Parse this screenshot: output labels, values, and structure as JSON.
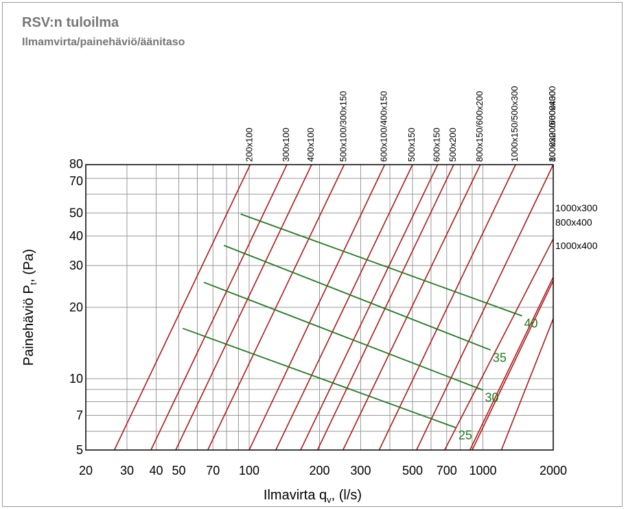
{
  "header": {
    "title": "RSV:n tuloilma",
    "subtitle": "Ilmamvirta/painehäviö/äänitaso"
  },
  "colors": {
    "grid": "#999999",
    "size_lines": "#b01818",
    "sound_lines": "#1f7a1f",
    "title_text": "#777777"
  },
  "chart_data": {
    "type": "line",
    "title": "RSV:n tuloilma",
    "subtitle": "Ilmamvirta/painehäviö/äänitaso",
    "xlabel": "Ilmavirta q",
    "xlabel_sub": "v",
    "xlabel_suffix": ", (l/s)",
    "ylabel": "Painehäviö P",
    "ylabel_sub": "t",
    "ylabel_suffix": ", (Pa)",
    "x_scale": "log",
    "y_scale": "log",
    "xlim": [
      20,
      2000
    ],
    "ylim": [
      5,
      80
    ],
    "grid": true,
    "x_ticks": [
      20,
      30,
      40,
      50,
      70,
      100,
      200,
      300,
      500,
      700,
      1000,
      2000
    ],
    "x_tick_labels": [
      "20",
      "30",
      "40",
      "50",
      "70",
      "100",
      "200",
      "300",
      "500",
      "700",
      "1000",
      "2000"
    ],
    "y_ticks": [
      5,
      7,
      10,
      20,
      30,
      40,
      50,
      70,
      80
    ],
    "y_tick_labels": [
      "5",
      "7",
      "10",
      "20",
      "30",
      "40",
      "50",
      "70",
      "80"
    ],
    "x_grid": [
      20,
      30,
      40,
      50,
      60,
      70,
      80,
      90,
      100,
      200,
      300,
      400,
      500,
      600,
      700,
      800,
      900,
      1000,
      2000
    ],
    "y_grid": [
      5,
      6,
      7,
      8,
      9,
      10,
      20,
      30,
      40,
      50,
      60,
      70,
      80
    ],
    "size_series": [
      {
        "name": "200x100",
        "points": [
          [
            26.5,
            5
          ],
          [
            101,
            80
          ]
        ]
      },
      {
        "name": "300x100",
        "points": [
          [
            38,
            5
          ],
          [
            145,
            80
          ]
        ]
      },
      {
        "name": "400x100",
        "points": [
          [
            48.5,
            5
          ],
          [
            185,
            80
          ]
        ]
      },
      {
        "name": "500x100/300x150",
        "points": [
          [
            66.5,
            5
          ],
          [
            255,
            80
          ]
        ]
      },
      {
        "name": "600x100/400x150",
        "points": [
          [
            100,
            5
          ],
          [
            380,
            80
          ]
        ]
      },
      {
        "name": "500x150",
        "points": [
          [
            130,
            5
          ],
          [
            500,
            80
          ]
        ]
      },
      {
        "name": "600x150",
        "points": [
          [
            166,
            5
          ],
          [
            640,
            80
          ]
        ]
      },
      {
        "name": "500x200",
        "points": [
          [
            196,
            5
          ],
          [
            750,
            80
          ]
        ]
      },
      {
        "name": "800x150/600x200",
        "points": [
          [
            252,
            5
          ],
          [
            975,
            80
          ]
        ]
      },
      {
        "name": "1000x150/500x300",
        "points": [
          [
            360,
            5
          ],
          [
            1380,
            80
          ]
        ]
      },
      {
        "name": "1000x200/600x300",
        "points": [
          [
            520,
            5
          ],
          [
            2000,
            80
          ]
        ]
      },
      {
        "name": "800x300/600x400",
        "points": [
          [
            686,
            5
          ],
          [
            2000,
            38.9
          ]
        ]
      },
      {
        "name": "1000x300",
        "points": [
          [
            880,
            5
          ],
          [
            2000,
            26.8
          ]
        ]
      },
      {
        "name": "800x400",
        "points": [
          [
            900,
            5
          ],
          [
            2000,
            25.9
          ]
        ]
      },
      {
        "name": "1000x400",
        "points": [
          [
            1200,
            5
          ],
          [
            2000,
            17.9
          ]
        ]
      }
    ],
    "series_labels_top": [
      "200x100",
      "300x100",
      "400x100",
      "500x100/300x150",
      "600x100/400x150",
      "500x150",
      "600x150",
      "500x200",
      "800x150/600x200",
      "1000x150/500x300",
      "1000x200/600x300",
      "800x300/600x400"
    ],
    "series_labels_right": [
      "1000x300",
      "800x400",
      "1000x400"
    ],
    "sound_series": [
      {
        "name": "40",
        "points": [
          [
            92,
            49.5
          ],
          [
            1470,
            18.4
          ]
        ]
      },
      {
        "name": "35",
        "points": [
          [
            78,
            36.5
          ],
          [
            1080,
            13.2
          ]
        ]
      },
      {
        "name": "30",
        "points": [
          [
            64,
            25.5
          ],
          [
            1000,
            8.95
          ]
        ]
      },
      {
        "name": "25",
        "points": [
          [
            52,
            16.3
          ],
          [
            770,
            6.2
          ]
        ]
      }
    ]
  }
}
